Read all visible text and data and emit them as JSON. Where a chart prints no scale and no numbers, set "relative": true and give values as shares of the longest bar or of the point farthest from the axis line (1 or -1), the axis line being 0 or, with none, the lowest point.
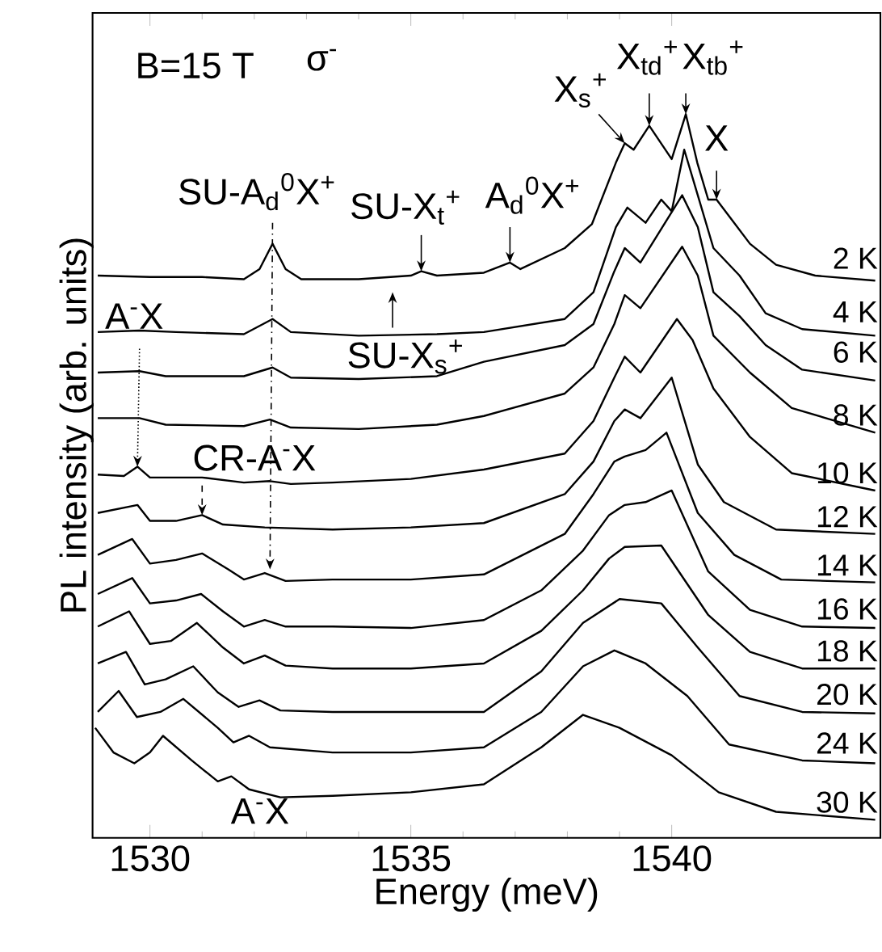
{
  "chart_data": {
    "type": "line",
    "relative": true,
    "xlabel": "Energy (meV)",
    "ylabel": "PL intensity (arb. units)",
    "xlim": [
      1528.9,
      1544.0
    ],
    "xticks": [
      1530,
      1535,
      1540
    ],
    "marker": "none",
    "series": [
      {
        "name": "2 K",
        "color": "#000000",
        "x": [
          1529.0,
          1530.0,
          1531.0,
          1531.8,
          1532.1,
          1532.35,
          1532.6,
          1532.9,
          1534.0,
          1535.0,
          1535.2,
          1535.5,
          1536.4,
          1536.9,
          1537.1,
          1537.95,
          1538.47,
          1538.93,
          1539.1,
          1539.27,
          1539.57,
          1540.0,
          1540.27,
          1540.49,
          1540.7,
          1540.86,
          1541.1,
          1541.5,
          1542.0,
          1542.75,
          1543.9
        ],
        "values": [
          0.777,
          0.775,
          0.775,
          0.772,
          0.786,
          0.821,
          0.786,
          0.772,
          0.772,
          0.777,
          0.783,
          0.777,
          0.781,
          0.795,
          0.786,
          0.815,
          0.848,
          0.933,
          0.96,
          0.951,
          0.984,
          0.938,
          1.0,
          0.933,
          0.882,
          0.882,
          0.859,
          0.821,
          0.792,
          0.777,
          0.77
        ]
      },
      {
        "name": "4 K",
        "color": "#000000",
        "x": [
          1529.0,
          1529.8,
          1530.5,
          1531.8,
          1532.35,
          1532.7,
          1534.0,
          1535.5,
          1536.4,
          1537.95,
          1538.5,
          1538.93,
          1539.15,
          1539.5,
          1539.8,
          1540.0,
          1540.24,
          1540.5,
          1540.8,
          1541.3,
          1541.8,
          1542.5,
          1543.9
        ],
        "values": [
          0.699,
          0.701,
          0.699,
          0.696,
          0.717,
          0.699,
          0.694,
          0.696,
          0.699,
          0.717,
          0.754,
          0.844,
          0.871,
          0.85,
          0.882,
          0.866,
          0.951,
          0.888,
          0.815,
          0.777,
          0.725,
          0.703,
          0.694
        ]
      },
      {
        "name": "6 K",
        "color": "#000000",
        "x": [
          1529.0,
          1529.8,
          1530.3,
          1531.8,
          1532.35,
          1532.7,
          1534.0,
          1535.5,
          1536.4,
          1537.95,
          1538.5,
          1538.9,
          1539.1,
          1539.4,
          1540.2,
          1540.5,
          1540.8,
          1541.3,
          1541.8,
          1542.5,
          1543.9
        ],
        "values": [
          0.643,
          0.645,
          0.638,
          0.638,
          0.65,
          0.636,
          0.634,
          0.638,
          0.658,
          0.681,
          0.71,
          0.783,
          0.815,
          0.795,
          0.888,
          0.844,
          0.754,
          0.721,
          0.681,
          0.647,
          0.632
        ]
      },
      {
        "name": "8 K",
        "color": "#000000",
        "x": [
          1529.0,
          1529.8,
          1530.3,
          1531.8,
          1532.3,
          1532.7,
          1534.0,
          1535.5,
          1536.4,
          1537.95,
          1538.5,
          1538.9,
          1539.1,
          1539.4,
          1540.2,
          1540.5,
          1540.8,
          1541.5,
          1542.3,
          1543.9
        ],
        "values": [
          0.58,
          0.58,
          0.571,
          0.569,
          0.578,
          0.567,
          0.565,
          0.571,
          0.583,
          0.614,
          0.65,
          0.71,
          0.75,
          0.732,
          0.817,
          0.777,
          0.694,
          0.643,
          0.594,
          0.56
        ]
      },
      {
        "name": "10 K",
        "color": "#000000",
        "x": [
          1529.0,
          1529.5,
          1529.76,
          1530.0,
          1531.0,
          1531.8,
          1532.3,
          1532.7,
          1533.5,
          1535.0,
          1536.4,
          1537.95,
          1538.5,
          1538.9,
          1539.1,
          1539.4,
          1540.1,
          1540.4,
          1540.8,
          1541.5,
          1542.3,
          1543.9
        ],
        "values": [
          0.502,
          0.5,
          0.513,
          0.498,
          0.498,
          0.491,
          0.493,
          0.489,
          0.491,
          0.496,
          0.509,
          0.531,
          0.576,
          0.636,
          0.665,
          0.643,
          0.717,
          0.688,
          0.621,
          0.554,
          0.504,
          0.48
        ]
      },
      {
        "name": "12 K",
        "color": "#000000",
        "x": [
          1529.0,
          1529.76,
          1530.0,
          1530.5,
          1531.0,
          1531.4,
          1532.2,
          1533.5,
          1535.0,
          1536.4,
          1537.95,
          1538.5,
          1538.9,
          1539.1,
          1539.4,
          1540.0,
          1540.5,
          1541.0,
          1542.0,
          1543.9
        ],
        "values": [
          0.449,
          0.46,
          0.438,
          0.438,
          0.446,
          0.433,
          0.429,
          0.426,
          0.429,
          0.435,
          0.475,
          0.52,
          0.576,
          0.592,
          0.58,
          0.636,
          0.516,
          0.464,
          0.426,
          0.42
        ]
      },
      {
        "name": "14 K",
        "color": "#000000",
        "x": [
          1529.0,
          1529.66,
          1530.0,
          1530.5,
          1531.0,
          1531.5,
          1531.8,
          1532.2,
          1532.6,
          1533.5,
          1535.0,
          1536.4,
          1537.95,
          1538.5,
          1538.9,
          1539.1,
          1539.5,
          1539.9,
          1540.5,
          1541.2,
          1542.1,
          1543.9
        ],
        "values": [
          0.391,
          0.413,
          0.379,
          0.384,
          0.393,
          0.371,
          0.357,
          0.366,
          0.355,
          0.357,
          0.357,
          0.364,
          0.42,
          0.475,
          0.52,
          0.527,
          0.536,
          0.56,
          0.449,
          0.391,
          0.357,
          0.353
        ]
      },
      {
        "name": "16 K",
        "color": "#000000",
        "x": [
          1529.0,
          1529.66,
          1530.0,
          1530.5,
          1530.98,
          1531.4,
          1531.8,
          1532.2,
          1532.6,
          1533.5,
          1535.0,
          1536.4,
          1537.5,
          1538.3,
          1538.8,
          1539.1,
          1539.5,
          1540.0,
          1540.7,
          1541.5,
          1542.5,
          1543.9
        ],
        "values": [
          0.337,
          0.359,
          0.324,
          0.328,
          0.337,
          0.313,
          0.292,
          0.301,
          0.292,
          0.292,
          0.29,
          0.301,
          0.342,
          0.397,
          0.446,
          0.46,
          0.464,
          0.48,
          0.368,
          0.315,
          0.292,
          0.29
        ]
      },
      {
        "name": "18 K",
        "color": "#000000",
        "x": [
          1529.0,
          1529.6,
          1530.0,
          1530.4,
          1530.9,
          1531.4,
          1531.8,
          1532.2,
          1532.6,
          1533.5,
          1535.0,
          1536.4,
          1537.5,
          1538.3,
          1538.8,
          1539.1,
          1539.8,
          1540.7,
          1541.5,
          1542.5,
          1543.9
        ],
        "values": [
          0.292,
          0.313,
          0.268,
          0.272,
          0.297,
          0.263,
          0.241,
          0.252,
          0.238,
          0.234,
          0.234,
          0.241,
          0.286,
          0.342,
          0.386,
          0.402,
          0.404,
          0.308,
          0.257,
          0.234,
          0.234
        ]
      },
      {
        "name": "20 K",
        "color": "#000000",
        "x": [
          1529.0,
          1529.54,
          1529.9,
          1530.3,
          1530.83,
          1531.3,
          1531.7,
          1532.1,
          1532.5,
          1533.5,
          1535.0,
          1536.4,
          1537.5,
          1538.3,
          1539.0,
          1539.8,
          1540.5,
          1541.3,
          1542.5,
          1543.9
        ],
        "values": [
          0.241,
          0.257,
          0.212,
          0.219,
          0.237,
          0.201,
          0.181,
          0.19,
          0.176,
          0.174,
          0.174,
          0.174,
          0.23,
          0.297,
          0.33,
          0.324,
          0.263,
          0.196,
          0.174,
          0.172
        ]
      },
      {
        "name": "24 K",
        "color": "#000000",
        "x": [
          1529.0,
          1529.4,
          1529.75,
          1530.2,
          1530.64,
          1531.3,
          1531.6,
          1531.9,
          1532.3,
          1533.5,
          1535.0,
          1536.4,
          1537.5,
          1538.3,
          1538.9,
          1539.5,
          1540.3,
          1541.1,
          1542.5,
          1543.9
        ],
        "values": [
          0.174,
          0.203,
          0.167,
          0.174,
          0.192,
          0.152,
          0.132,
          0.141,
          0.125,
          0.118,
          0.118,
          0.125,
          0.174,
          0.237,
          0.259,
          0.241,
          0.196,
          0.129,
          0.107,
          0.103
        ]
      },
      {
        "name": "30 K",
        "color": "#000000",
        "x": [
          1528.95,
          1529.3,
          1529.7,
          1530.0,
          1530.25,
          1530.8,
          1531.3,
          1531.56,
          1531.9,
          1532.5,
          1533.5,
          1535.0,
          1536.4,
          1537.5,
          1538.3,
          1539.0,
          1540.0,
          1540.9,
          1542.0,
          1543.9
        ],
        "values": [
          0.152,
          0.118,
          0.103,
          0.118,
          0.141,
          0.107,
          0.078,
          0.085,
          0.067,
          0.056,
          0.058,
          0.063,
          0.074,
          0.125,
          0.17,
          0.152,
          0.114,
          0.063,
          0.036,
          0.025
        ]
      }
    ],
    "annotations": [
      "B=15 T",
      "σ$^{-}$",
      {
        "text": "SU-A$_{d}$$^{0}$X$^{+}$",
        "x": 1532.3,
        "y": 0.371
      },
      {
        "text": "SU-X$_{t}$$^{+}$",
        "x": 1535.2,
        "y": 0.783
      },
      {
        "text": "A$_{d}$$^{0}$X$^{+}$",
        "x": 1536.9,
        "y": 0.795
      },
      {
        "text": "X$_{s}$$^{+}$",
        "x": 1539.1,
        "y": 0.96
      },
      {
        "text": "X$_{td}$$^{+}$",
        "x": 1539.57,
        "y": 0.984
      },
      {
        "text": "X$_{tb}$$^{+}$",
        "x": 1540.27,
        "y": 1.0
      },
      {
        "text": "X",
        "x": 1540.86,
        "y": 0.882
      },
      "SU-X$_{s}$$^{+}$",
      {
        "text": "A$^{-}$X",
        "x": 1529.76,
        "y": 0.513
      },
      {
        "text": "CR-A$^{-}$X",
        "x": 1531.0,
        "y": 0.446
      },
      {
        "text": "A$^{-}$X",
        "x": 1531.56,
        "y": 0.085
      }
    ]
  }
}
